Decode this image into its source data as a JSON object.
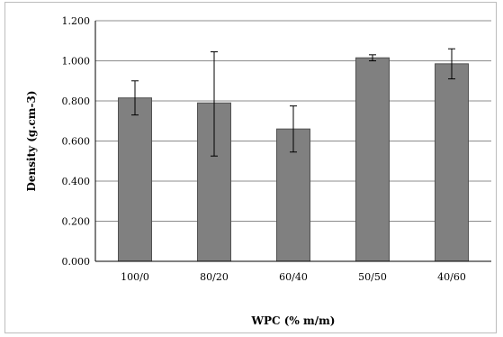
{
  "chart_data": {
    "type": "bar",
    "categories": [
      "100/0",
      "80/20",
      "60/40",
      "50/50",
      "40/60"
    ],
    "values": [
      0.815,
      0.79,
      0.66,
      1.015,
      0.985
    ],
    "error_low": [
      0.73,
      0.525,
      0.545,
      1.0,
      0.91
    ],
    "error_high": [
      0.9,
      1.045,
      0.775,
      1.03,
      1.06
    ],
    "ylim": [
      0,
      1.2
    ],
    "yticks": [
      0.0,
      0.2,
      0.4,
      0.6,
      0.8,
      1.0,
      1.2
    ],
    "ytick_labels": [
      "0.000",
      "0.200",
      "0.400",
      "0.600",
      "0.800",
      "1.000",
      "1.200"
    ],
    "xlabel": "WPC (% m/m)",
    "ylabel": "Density (g.cm-3)",
    "grid": true,
    "bar_color": "#808080",
    "bar_border_color": "#505050",
    "grid_color": "#8c8c8c"
  }
}
